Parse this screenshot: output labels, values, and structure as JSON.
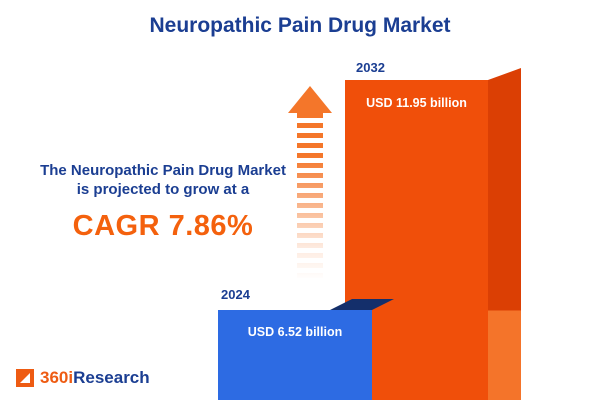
{
  "title": "Neuropathic Pain Drug Market",
  "annotation": {
    "line1": "The Neuropathic Pain Drug Market",
    "line2": "is projected to grow at a",
    "cagr": "CAGR 7.86%"
  },
  "logo": {
    "prefix": "360i",
    "suffix": "Research"
  },
  "chart_data": {
    "type": "bar",
    "title": "Neuropathic Pain Drug Market",
    "unit": "USD billion",
    "categories": [
      "2024",
      "2032"
    ],
    "values": [
      6.52,
      11.95
    ],
    "value_labels": [
      "USD 6.52 billion",
      "USD 11.95 billion"
    ],
    "cagr_percent": 7.86,
    "legend": "none",
    "axes": "none",
    "colors": {
      "bar_2024": "#2D6BE3",
      "bar_2024_shadow": "#142F6B",
      "bar_2032": "#F04F0A",
      "bar_2032_side": "#DB3F04",
      "accent_orange": "#F4610D",
      "navy": "#1B3E92"
    }
  }
}
